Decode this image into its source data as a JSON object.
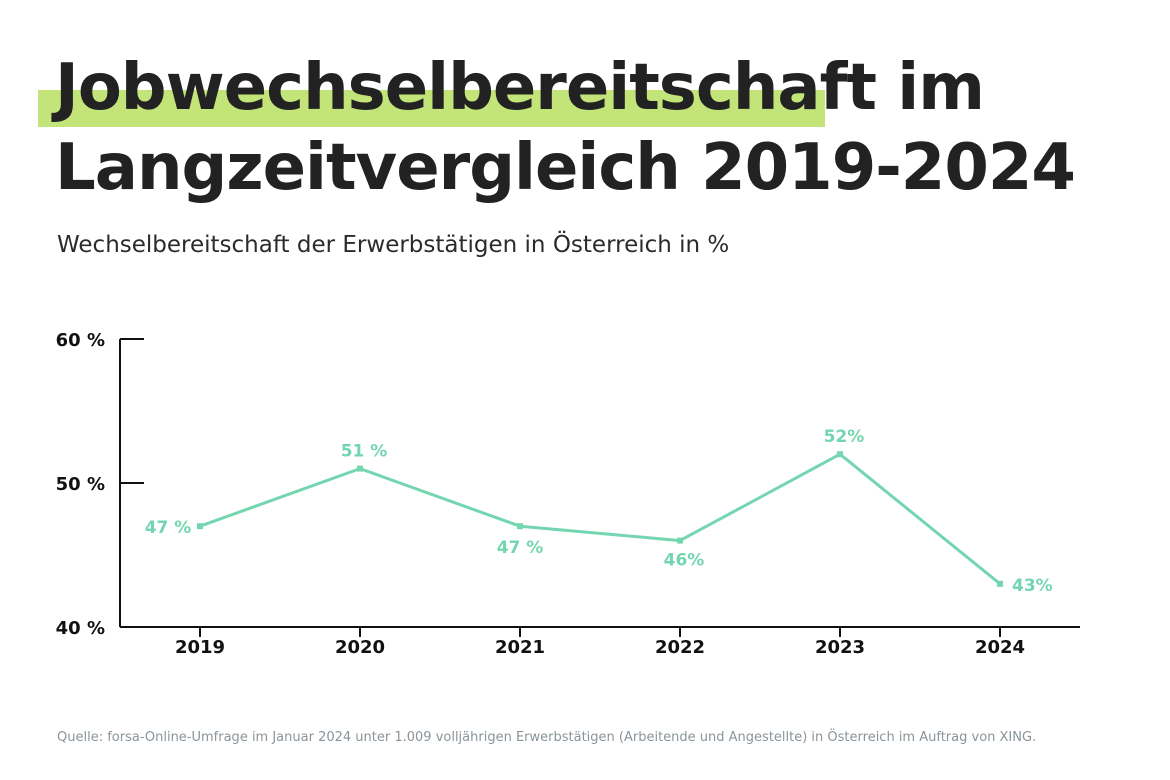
{
  "header": {
    "title_line1": "Jobwechselbereitschaft im",
    "title_line2": "Langzeitvergleich 2019-2024",
    "subtitle": "Wechselbereitschaft der Erwerbstätigen in Österreich in %"
  },
  "footer": {
    "source": "Quelle: forsa-Online-Umfrage im Januar 2024 unter 1.009 volljährigen Erwerbstätigen (Arbeitende und Angestellte) in Österreich im Auftrag von XING."
  },
  "colors": {
    "line": "#74d6b0",
    "highlight": "#c3e478",
    "axis": "#111111"
  },
  "chart_data": {
    "type": "line",
    "categories": [
      "2019",
      "2020",
      "2021",
      "2022",
      "2023",
      "2024"
    ],
    "series": [
      {
        "values": [
          47,
          51,
          47,
          46,
          52,
          43
        ]
      }
    ],
    "data_labels": [
      "47 %",
      "51 %",
      "47 %",
      "46%",
      "52%",
      "43%"
    ],
    "y_ticks": [
      40,
      50,
      60
    ],
    "y_tick_labels": [
      "40 %",
      "50 %",
      "60 %"
    ],
    "ylim": [
      40,
      60
    ],
    "grid": false,
    "legend": "none"
  }
}
